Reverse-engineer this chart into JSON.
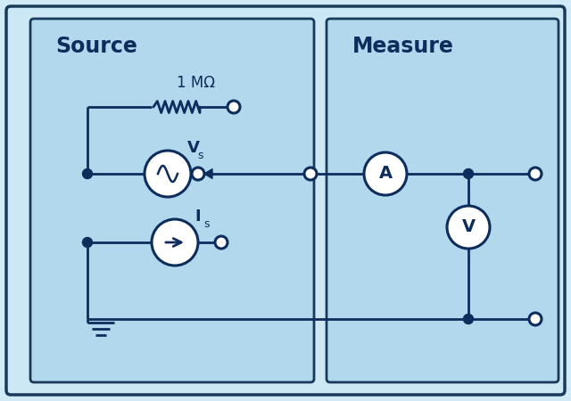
{
  "bg_outer": "#cce8f4",
  "bg_inner": "#b2d8ee",
  "border_color": "#1a3a5c",
  "line_color": "#0d2d5c",
  "text_color": "#0d2d5c",
  "title_source": "Source",
  "title_measure": "Measure",
  "resistor_label": "1 MΩ",
  "vs_label": "V",
  "vs_sub": "s",
  "is_label": "I",
  "is_sub": "s",
  "ammeter_label": "A",
  "voltmeter_label": "V",
  "fig_width": 6.4,
  "fig_height": 4.5,
  "outer_bg": "#d0eaf8"
}
